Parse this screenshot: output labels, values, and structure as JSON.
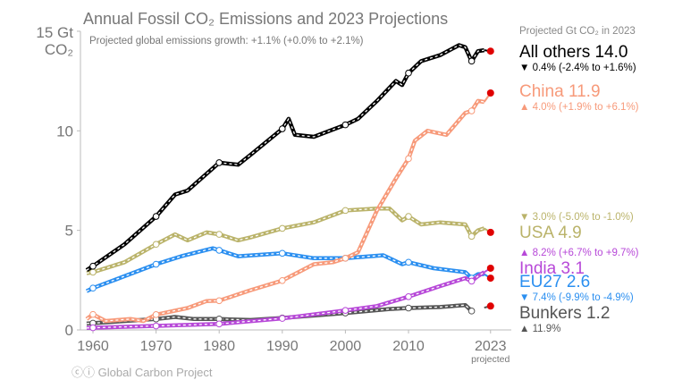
{
  "chart_data": {
    "type": "line",
    "title": "Annual Fossil CO₂ Emissions and 2023 Projections",
    "subtitle": "Projected global emissions growth: +1.1% (+0.0% to +2.1%)",
    "ylabel": [
      "15 Gt",
      "CO₂"
    ],
    "ylim": [
      0,
      15
    ],
    "xlim": [
      1959,
      2023
    ],
    "y_ticks": [
      "0",
      "5",
      "10"
    ],
    "x_ticks": [
      1960,
      1970,
      1980,
      1990,
      2000,
      2010,
      2023
    ],
    "x_tick_note": "projected",
    "legend_title": "Projected Gt CO₂ in 2023",
    "grid": false,
    "legend_placement": "right",
    "series": [
      {
        "name": "All others",
        "value_2023": "14.0",
        "change": "0.4% (-2.4% to +1.6%)",
        "direction": "down",
        "color": "#000000",
        "points": [
          [
            1959,
            3.0
          ],
          [
            1960,
            3.2
          ],
          [
            1965,
            4.3
          ],
          [
            1970,
            5.7
          ],
          [
            1973,
            6.8
          ],
          [
            1975,
            7.0
          ],
          [
            1980,
            8.4
          ],
          [
            1983,
            8.3
          ],
          [
            1985,
            8.8
          ],
          [
            1990,
            10.1
          ],
          [
            1991,
            10.6
          ],
          [
            1992,
            9.8
          ],
          [
            1995,
            9.7
          ],
          [
            2000,
            10.3
          ],
          [
            2002,
            10.6
          ],
          [
            2005,
            11.5
          ],
          [
            2008,
            12.5
          ],
          [
            2009,
            12.3
          ],
          [
            2010,
            12.9
          ],
          [
            2012,
            13.5
          ],
          [
            2015,
            13.8
          ],
          [
            2018,
            14.3
          ],
          [
            2019,
            14.2
          ],
          [
            2020,
            13.5
          ],
          [
            2021,
            14.0
          ],
          [
            2022,
            14.05
          ],
          [
            2023,
            14.0
          ]
        ]
      },
      {
        "name": "China",
        "value_2023": "11.9",
        "change": "4.0% (+1.9% to +6.1%)",
        "direction": "up",
        "color": "#f79a7a",
        "points": [
          [
            1959,
            0.55
          ],
          [
            1960,
            0.78
          ],
          [
            1962,
            0.45
          ],
          [
            1966,
            0.55
          ],
          [
            1968,
            0.45
          ],
          [
            1970,
            0.77
          ],
          [
            1975,
            1.1
          ],
          [
            1978,
            1.45
          ],
          [
            1980,
            1.47
          ],
          [
            1985,
            2.0
          ],
          [
            1990,
            2.48
          ],
          [
            1995,
            3.3
          ],
          [
            1998,
            3.4
          ],
          [
            2000,
            3.6
          ],
          [
            2002,
            3.9
          ],
          [
            2005,
            6.0
          ],
          [
            2008,
            7.6
          ],
          [
            2010,
            8.6
          ],
          [
            2011,
            9.5
          ],
          [
            2013,
            10.0
          ],
          [
            2016,
            9.8
          ],
          [
            2019,
            10.9
          ],
          [
            2020,
            11.0
          ],
          [
            2021,
            11.5
          ],
          [
            2022,
            11.45
          ],
          [
            2023,
            11.9
          ]
        ]
      },
      {
        "name": "USA",
        "value_2023": "4.9",
        "change": "3.0% (-5.0% to -1.0%)",
        "direction": "down",
        "color": "#bab36a",
        "points": [
          [
            1959,
            2.85
          ],
          [
            1960,
            2.9
          ],
          [
            1965,
            3.4
          ],
          [
            1970,
            4.3
          ],
          [
            1973,
            4.8
          ],
          [
            1975,
            4.5
          ],
          [
            1978,
            4.9
          ],
          [
            1980,
            4.8
          ],
          [
            1983,
            4.5
          ],
          [
            1985,
            4.65
          ],
          [
            1990,
            5.1
          ],
          [
            1995,
            5.4
          ],
          [
            2000,
            6.0
          ],
          [
            2005,
            6.1
          ],
          [
            2007,
            6.1
          ],
          [
            2009,
            5.5
          ],
          [
            2010,
            5.7
          ],
          [
            2012,
            5.3
          ],
          [
            2015,
            5.4
          ],
          [
            2019,
            5.3
          ],
          [
            2020,
            4.7
          ],
          [
            2021,
            5.0
          ],
          [
            2022,
            5.1
          ],
          [
            2023,
            4.9
          ]
        ]
      },
      {
        "name": "India",
        "value_2023": "3.1",
        "change": "8.2% (+6.7% to +9.7%)",
        "direction": "up",
        "color": "#b748d8",
        "points": [
          [
            1959,
            0.1
          ],
          [
            1970,
            0.2
          ],
          [
            1980,
            0.3
          ],
          [
            1990,
            0.58
          ],
          [
            2000,
            0.98
          ],
          [
            2005,
            1.2
          ],
          [
            2010,
            1.67
          ],
          [
            2015,
            2.2
          ],
          [
            2019,
            2.6
          ],
          [
            2020,
            2.45
          ],
          [
            2021,
            2.7
          ],
          [
            2022,
            2.9
          ],
          [
            2023,
            3.1
          ]
        ]
      },
      {
        "name": "EU27",
        "value_2023": "2.6",
        "change": "7.4% (-9.9% to -4.9%)",
        "direction": "down",
        "color": "#2b8ff0",
        "points": [
          [
            1959,
            1.95
          ],
          [
            1960,
            2.1
          ],
          [
            1965,
            2.7
          ],
          [
            1970,
            3.3
          ],
          [
            1974,
            3.7
          ],
          [
            1979,
            4.1
          ],
          [
            1980,
            4.0
          ],
          [
            1983,
            3.7
          ],
          [
            1990,
            3.85
          ],
          [
            1995,
            3.6
          ],
          [
            2000,
            3.6
          ],
          [
            2006,
            3.75
          ],
          [
            2009,
            3.3
          ],
          [
            2010,
            3.4
          ],
          [
            2014,
            3.1
          ],
          [
            2019,
            2.9
          ],
          [
            2020,
            2.6
          ],
          [
            2021,
            2.8
          ],
          [
            2022,
            2.8
          ],
          [
            2023,
            2.6
          ]
        ]
      },
      {
        "name": "Bunkers",
        "value_2023": "1.2",
        "change": "11.9%",
        "direction": "up",
        "color": "#555555",
        "points": [
          [
            1959,
            0.32
          ],
          [
            1970,
            0.55
          ],
          [
            1973,
            0.65
          ],
          [
            1976,
            0.55
          ],
          [
            1980,
            0.55
          ],
          [
            1985,
            0.5
          ],
          [
            1990,
            0.6
          ],
          [
            2000,
            0.85
          ],
          [
            2007,
            1.05
          ],
          [
            2010,
            1.1
          ],
          [
            2015,
            1.15
          ],
          [
            2019,
            1.25
          ],
          [
            2020,
            0.95
          ],
          [
            2023,
            1.2
          ]
        ]
      }
    ],
    "projection_marker_color": "#e00000"
  },
  "credit": "Global Carbon Project"
}
